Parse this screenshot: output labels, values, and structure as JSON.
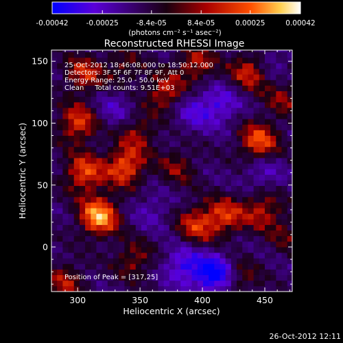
{
  "chart_data": {
    "type": "heatmap",
    "title": "Reconstructed RHESSI Image",
    "xlabel": "Heliocentric X (arcsec)",
    "ylabel": "Heliocentric Y (arcsec)",
    "xlim": [
      279,
      472
    ],
    "ylim": [
      -36,
      159
    ],
    "x_ticks": [
      300,
      350,
      400,
      450
    ],
    "y_ticks": [
      0,
      50,
      100,
      150
    ],
    "colorbar": {
      "range": [
        -0.00042,
        0.00042
      ],
      "tick_values": [
        -0.00042,
        -0.00025,
        -8.4e-05,
        8.4e-05,
        0.00025,
        0.00042
      ],
      "tick_labels": [
        "-0.00042",
        "-0.00025",
        "-8.4e-05",
        "8.4e-05",
        "0.00025",
        "0.00042"
      ],
      "unit_label": "(photons cm⁻² s⁻¹ asec⁻²)",
      "colors": [
        "#0000ff",
        "#5a00d8",
        "#1a0010",
        "#a80000",
        "#ff5000",
        "#ffd050",
        "#ffffff"
      ]
    },
    "annotations": [
      "25-Oct-2012 18:46:08.000 to 18:50:12.000",
      "Detectors: 3F 5F 6F 7F 8F 9F, Att 0",
      "Energy Range: 25.0 - 50.0 keV",
      "Clean     Total counts: 9.51E+03"
    ],
    "peak_label": "Position of Peak = [317,25]",
    "peak": {
      "x": 317,
      "y": 25
    },
    "hotspots": [
      {
        "x": 317,
        "y": 25,
        "flux": 0.00042
      },
      {
        "x": 305,
        "y": 60,
        "flux": 0.0003
      },
      {
        "x": 300,
        "y": 100,
        "flux": 0.00028
      },
      {
        "x": 338,
        "y": 65,
        "flux": 0.00032
      },
      {
        "x": 348,
        "y": 92,
        "flux": 0.00018
      },
      {
        "x": 370,
        "y": 125,
        "flux": 0.00024
      },
      {
        "x": 395,
        "y": 148,
        "flux": 0.00022
      },
      {
        "x": 438,
        "y": 142,
        "flux": 0.00026
      },
      {
        "x": 445,
        "y": 85,
        "flux": 0.00032
      },
      {
        "x": 395,
        "y": 18,
        "flux": 0.00025
      },
      {
        "x": 418,
        "y": 25,
        "flux": 0.00026
      },
      {
        "x": 448,
        "y": 30,
        "flux": 0.00022
      },
      {
        "x": 380,
        "y": 65,
        "flux": 0.00016
      },
      {
        "x": 345,
        "y": -10,
        "flux": 0.00018
      },
      {
        "x": 290,
        "y": -28,
        "flux": 0.0002
      },
      {
        "x": 305,
        "y": 140,
        "flux": 0.00024
      },
      {
        "x": 337,
        "y": 145,
        "flux": 0.00014
      },
      {
        "x": 465,
        "y": 120,
        "flux": 0.00016
      },
      {
        "x": 430,
        "y": -25,
        "flux": 0.00016
      },
      {
        "x": 468,
        "y": 10,
        "flux": 0.00012
      }
    ],
    "coldspots": [
      {
        "x": 410,
        "y": -22,
        "flux": -0.00035
      },
      {
        "x": 385,
        "y": -15,
        "flux": -0.00022
      },
      {
        "x": 415,
        "y": 115,
        "flux": -0.00018
      },
      {
        "x": 393,
        "y": 110,
        "flux": -0.00015
      },
      {
        "x": 330,
        "y": 112,
        "flux": -0.00012
      },
      {
        "x": 448,
        "y": 60,
        "flux": -0.00013
      },
      {
        "x": 360,
        "y": 30,
        "flux": -0.0001
      },
      {
        "x": 455,
        "y": 150,
        "flux": -0.0001
      }
    ]
  },
  "footer": {
    "timestamp": "26-Oct-2012 12:11"
  }
}
